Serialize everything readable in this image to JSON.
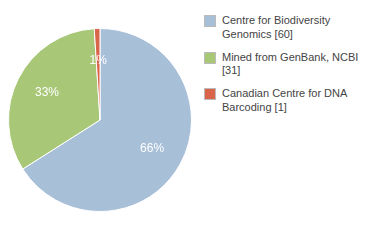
{
  "chart_data": {
    "type": "pie",
    "categories": [
      "Centre for Biodiversity\nGenomics [60]",
      "Mined from GenBank, NCBI [31]",
      "Canadian Centre for DNA\nBarcoding [1]"
    ],
    "values": [
      66,
      33,
      1
    ],
    "value_labels": [
      "66%",
      "33%",
      "1%"
    ],
    "colors": [
      "#a8bfd8",
      "#a8c878",
      "#d9644a"
    ],
    "data_labels": true,
    "legend": "right"
  }
}
